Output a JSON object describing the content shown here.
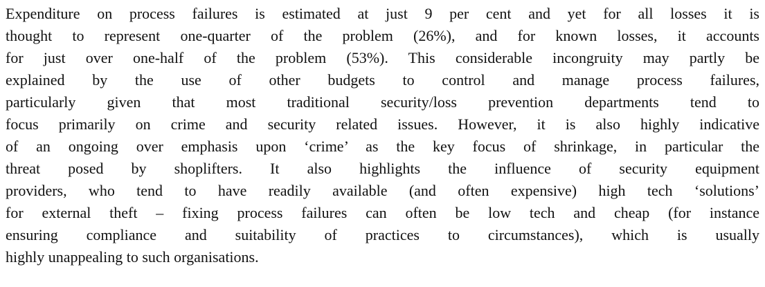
{
  "paragraph": {
    "lines": [
      "Expenditure on process failures is estimated at just 9 per cent and yet for all losses it is",
      "thought to represent one-quarter of the problem (26%), and for known losses, it accounts",
      "for just over one-half of the problem (53%). This considerable incongruity may partly be",
      "explained by the use of other budgets to control and manage process failures,",
      "particularly given that most traditional security/loss prevention departments tend to",
      "focus primarily on crime and security related issues. However, it is also highly indicative",
      "of an ongoing over emphasis upon ‘crime’ as the key focus of shrinkage, in particular the",
      "threat posed by shoplifters. It also highlights the influence of security equipment",
      "providers, who tend to have readily available (and often expensive) high tech ‘solutions’",
      "for external theft – fixing process failures can often be low tech and cheap (for instance",
      "ensuring compliance and suitability of practices to circumstances), which is usually",
      "highly unappealing to such organisations."
    ]
  }
}
